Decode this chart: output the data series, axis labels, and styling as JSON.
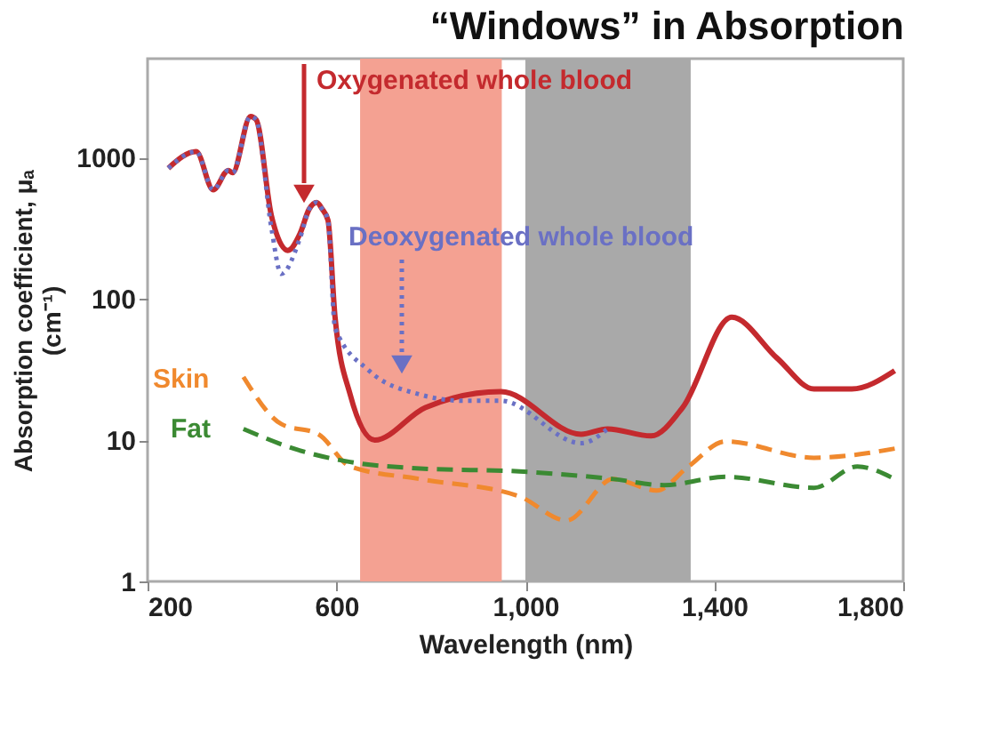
{
  "chart_data": {
    "type": "line",
    "title": "“Windows” in Absorption",
    "xlabel": "Wavelength (nm)",
    "ylabel": "Absorption coefficient, μₐ\n(cm⁻¹)",
    "log": true,
    "grid": false,
    "xlim": [
      200,
      1800
    ],
    "xticks": [
      200,
      600,
      {
        "value": 1000,
        "label": "1,000"
      },
      {
        "value": 1400,
        "label": "1,400"
      },
      {
        "value": 1800,
        "label": "1,800"
      }
    ],
    "ylim": [
      1,
      5000
    ],
    "yticks": [
      1,
      10,
      100,
      1000
    ],
    "bands": [
      {
        "axis": "x",
        "from": 650,
        "to": 950,
        "color": "#f4a192"
      },
      {
        "axis": "x",
        "from": 1000,
        "to": 1350,
        "color": "#a9a9a9"
      }
    ],
    "series": [
      {
        "name": "Oxygenated whole blood",
        "color": "#c42a2e",
        "line_style": "solid",
        "x": [
          244,
          303,
          339,
          371,
          380,
          418,
          430,
          462,
          497,
          523,
          542,
          558,
          570,
          582,
          597,
          629,
          681,
          788,
          948,
          1118,
          1174,
          1266,
          1333,
          1437,
          1533,
          1611,
          1691,
          1782
        ],
        "values": [
          840,
          1100,
          590,
          810,
          780,
          1950,
          1850,
          390,
          220,
          290,
          430,
          480,
          430,
          360,
          74,
          21,
          10,
          17,
          22,
          11,
          12,
          10.7,
          17,
          74,
          38,
          23,
          23,
          31
        ]
      },
      {
        "name": "Deoxygenated whole blood",
        "color": "#6a70c4",
        "line_style": "dotted",
        "x": [
          244,
          303,
          339,
          371,
          380,
          418,
          430,
          462,
          483,
          523,
          542,
          558,
          570,
          582,
          597,
          669,
          777,
          868,
          948,
          1118,
          1174
        ],
        "values": [
          840,
          1100,
          590,
          810,
          780,
          1950,
          1850,
          320,
          150,
          270,
          430,
          480,
          430,
          360,
          62,
          31,
          21,
          19,
          19,
          9.5,
          12
        ]
      },
      {
        "name": "Skin",
        "color": "#f0892e",
        "line_style": "dashed",
        "x": [
          403,
          483,
          562,
          629,
          777,
          987,
          1087,
          1186,
          1278,
          1345,
          1424,
          1611,
          1782
        ],
        "values": [
          28,
          13,
          11,
          6.5,
          5.3,
          4,
          2.7,
          5.3,
          4.4,
          6.5,
          9.8,
          7.5,
          8.7
        ]
      },
      {
        "name": "Fat",
        "color": "#3b8a33",
        "line_style": "dashed",
        "x": [
          403,
          510,
          629,
          777,
          987,
          1186,
          1294,
          1424,
          1611,
          1703,
          1782
        ],
        "values": [
          12,
          8.7,
          7,
          6.3,
          6,
          5.3,
          4.8,
          5.5,
          4.6,
          6.5,
          5.3
        ]
      }
    ]
  }
}
